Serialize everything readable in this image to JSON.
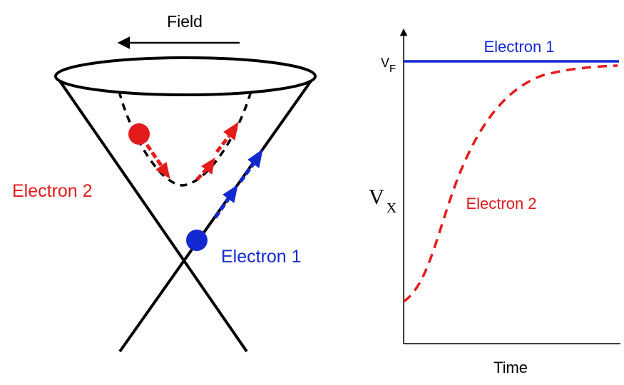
{
  "diagram": {
    "field_label": "Field",
    "electron2_label": "Electron 2",
    "electron1_label": "Electron 1"
  },
  "plot": {
    "y_symbol": "V",
    "y_subscript": "X",
    "vf_symbol": "V",
    "vf_subscript": "F",
    "x_label": "Time",
    "series": [
      {
        "name": "Electron 1",
        "style": "solid",
        "color": "#1428d2"
      },
      {
        "name": "Electron 2",
        "style": "dashed",
        "color": "#e31b1b"
      }
    ]
  },
  "colors": {
    "electron1": "#1428d2",
    "electron2": "#e31b1b",
    "ink": "#000000"
  }
}
